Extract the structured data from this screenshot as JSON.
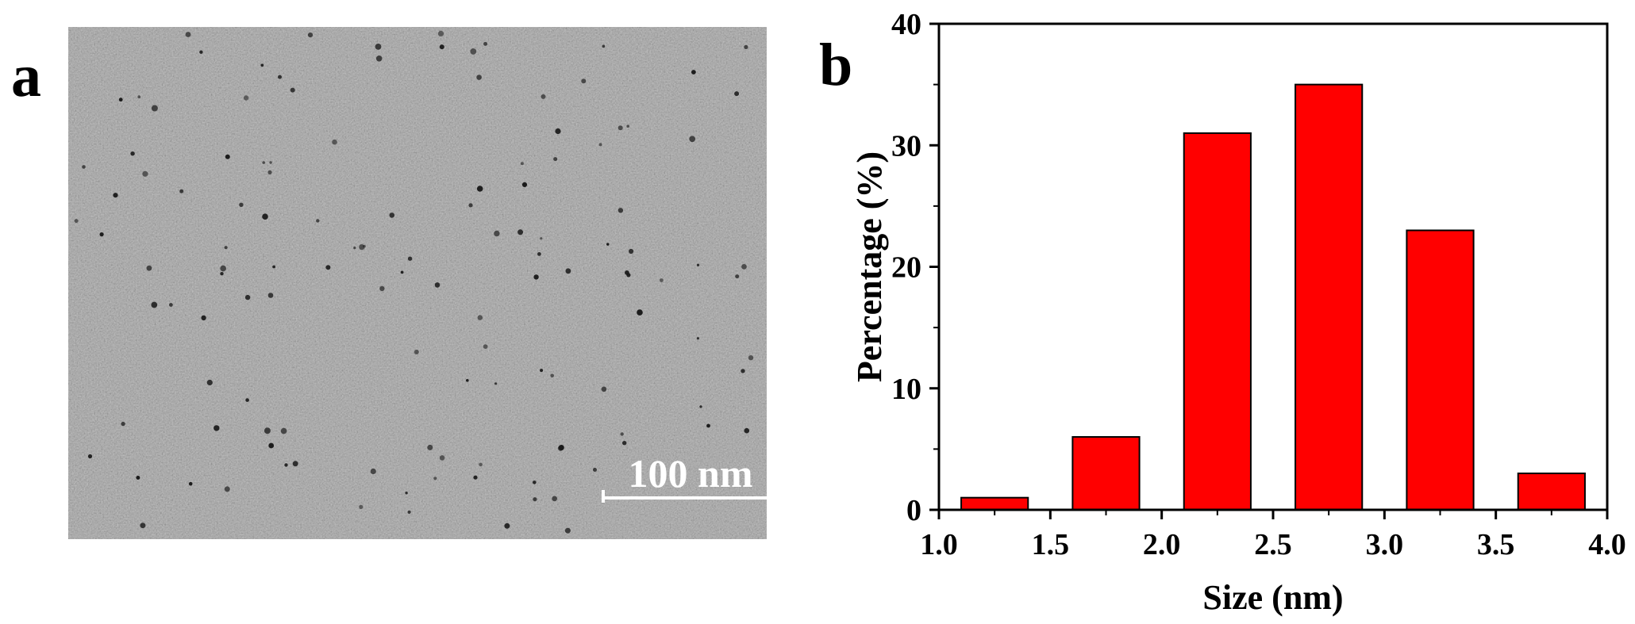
{
  "panel_a": {
    "label": "a",
    "scale_bar": "100 nm"
  },
  "panel_b": {
    "label": "b"
  },
  "chart_data": {
    "type": "bar",
    "x": [
      1.25,
      1.75,
      2.25,
      2.75,
      3.25,
      3.75
    ],
    "bin_width": 0.3,
    "values": [
      1,
      6,
      31,
      35,
      23,
      3
    ],
    "xlabel": "Size (nm)",
    "ylabel": "Percentage (%)",
    "xlim": [
      1.0,
      4.0
    ],
    "ylim": [
      0,
      40
    ],
    "xticks": [
      "1.0",
      "1.5",
      "2.0",
      "2.5",
      "3.0",
      "3.5",
      "4.0"
    ],
    "yticks": [
      "0",
      "10",
      "20",
      "30",
      "40"
    ],
    "bar_color": "#ff0000",
    "grid": false,
    "legend": "none"
  }
}
